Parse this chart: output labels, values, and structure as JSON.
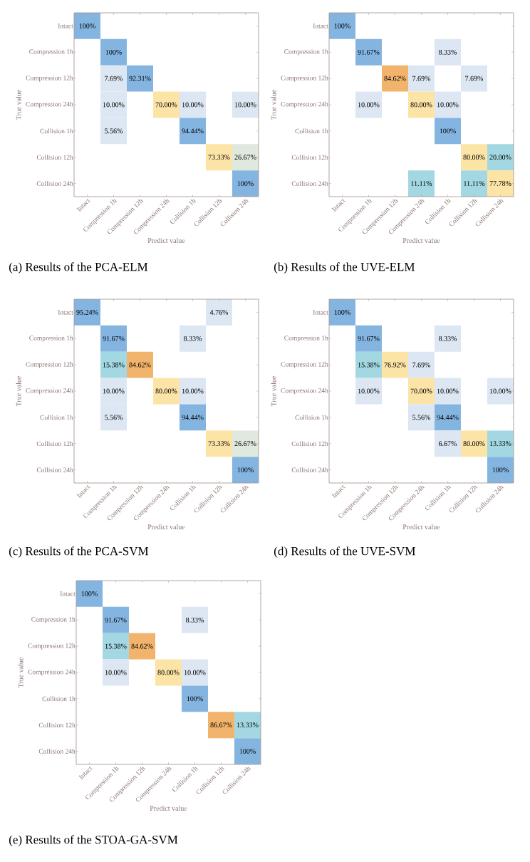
{
  "chart_data": [
    {
      "type": "heatmap",
      "title": "(a) Results of the PCA-ELM",
      "xlabel": "Predict value",
      "ylabel": "True value",
      "categories": [
        "Intact",
        "Compression 1h",
        "Compression 12h",
        "Compression 24h",
        "Collision 1h",
        "Collision 12h",
        "Collision 24h"
      ],
      "y_categories": [
        "Intact",
        "Compression 1h",
        "Compression 12h",
        "Compression 24h",
        "Collision 1h",
        "Collision 12h",
        "Collision 24h"
      ],
      "cells": [
        [
          100,
          null,
          null,
          null,
          null,
          null,
          null
        ],
        [
          null,
          100,
          null,
          null,
          null,
          null,
          null
        ],
        [
          null,
          7.69,
          92.31,
          null,
          null,
          null,
          null
        ],
        [
          null,
          10,
          null,
          70,
          10,
          null,
          10
        ],
        [
          null,
          5.56,
          null,
          null,
          94.44,
          null,
          null
        ],
        [
          null,
          null,
          null,
          null,
          null,
          73.33,
          26.67
        ],
        [
          null,
          null,
          null,
          null,
          null,
          null,
          100
        ]
      ],
      "cell_labels": [
        [
          "100%",
          null,
          null,
          null,
          null,
          null,
          null
        ],
        [
          null,
          "100%",
          null,
          null,
          null,
          null,
          null
        ],
        [
          null,
          "7.69%",
          "92.31%",
          null,
          null,
          null,
          null
        ],
        [
          null,
          "10.00%",
          null,
          "70.00%",
          "10.00%",
          null,
          "10.00%"
        ],
        [
          null,
          "5.56%",
          null,
          null,
          "94.44%",
          null,
          null
        ],
        [
          null,
          null,
          null,
          null,
          null,
          "73.33%",
          "26.67%"
        ],
        [
          null,
          null,
          null,
          null,
          null,
          null,
          "100%"
        ]
      ]
    },
    {
      "type": "heatmap",
      "title": "(b) Results of the UVE-ELM",
      "xlabel": "Predict value",
      "ylabel": "True value",
      "categories": [
        "Intact",
        "Compression 1h",
        "Compression 12h",
        "Compression 24h",
        "Collision 1h",
        "Collision 12h",
        "Collision 24h"
      ],
      "y_categories": [
        "Intact",
        "Compression 1h",
        "Compression 12h",
        "Compression 24h",
        "Collision 1h",
        "Collision 12h",
        "Collision 24h"
      ],
      "cells": [
        [
          100,
          null,
          null,
          null,
          null,
          null,
          null
        ],
        [
          null,
          91.67,
          null,
          null,
          8.33,
          null,
          null
        ],
        [
          null,
          null,
          84.62,
          7.69,
          null,
          7.69,
          null
        ],
        [
          null,
          10,
          null,
          80,
          10,
          null,
          null
        ],
        [
          null,
          null,
          null,
          null,
          100,
          null,
          null
        ],
        [
          null,
          null,
          null,
          null,
          null,
          80,
          20
        ],
        [
          null,
          null,
          null,
          11.11,
          null,
          11.11,
          77.78
        ]
      ],
      "cell_labels": [
        [
          "100%",
          null,
          null,
          null,
          null,
          null,
          null
        ],
        [
          null,
          "91.67%",
          null,
          null,
          "8.33%",
          null,
          null
        ],
        [
          null,
          null,
          "84.62%",
          "7.69%",
          null,
          "7.69%",
          null
        ],
        [
          null,
          "10.00%",
          null,
          "80.00%",
          "10.00%",
          null,
          null
        ],
        [
          null,
          null,
          null,
          null,
          "100%",
          null,
          null
        ],
        [
          null,
          null,
          null,
          null,
          null,
          "80.00%",
          "20.00%"
        ],
        [
          null,
          null,
          null,
          "11.11%",
          null,
          "11.11%",
          "77.78%"
        ]
      ]
    },
    {
      "type": "heatmap",
      "title": "(c) Results of the PCA-SVM",
      "xlabel": "Predict value",
      "ylabel": "True value",
      "categories": [
        "Intact",
        "Compression 1h",
        "Compression 12h",
        "Compression 24h",
        "Collision 1h",
        "Collision 12h",
        "Collision 24h"
      ],
      "y_categories": [
        "Intact",
        "Compression 1h",
        "Compression 12h",
        "Compression 24h",
        "Collision 1h",
        "Collision 12h",
        "Collision 24h"
      ],
      "cells": [
        [
          95.24,
          null,
          null,
          null,
          null,
          4.76,
          null
        ],
        [
          null,
          91.67,
          null,
          null,
          8.33,
          null,
          null
        ],
        [
          null,
          15.38,
          84.62,
          null,
          null,
          null,
          null
        ],
        [
          null,
          10,
          null,
          80,
          10,
          null,
          null
        ],
        [
          null,
          5.56,
          null,
          null,
          94.44,
          null,
          null
        ],
        [
          null,
          null,
          null,
          null,
          null,
          73.33,
          26.67
        ],
        [
          null,
          null,
          null,
          null,
          null,
          null,
          100
        ]
      ],
      "cell_labels": [
        [
          "95.24%",
          null,
          null,
          null,
          null,
          "4.76%",
          null
        ],
        [
          null,
          "91.67%",
          null,
          null,
          "8.33%",
          null,
          null
        ],
        [
          null,
          "15.38%",
          "84.62%",
          null,
          null,
          null,
          null
        ],
        [
          null,
          "10.00%",
          null,
          "80.00%",
          "10.00%",
          null,
          null
        ],
        [
          null,
          "5.56%",
          null,
          null,
          "94.44%",
          null,
          null
        ],
        [
          null,
          null,
          null,
          null,
          null,
          "73.33%",
          "26.67%"
        ],
        [
          null,
          null,
          null,
          null,
          null,
          null,
          "100%"
        ]
      ]
    },
    {
      "type": "heatmap",
      "title": "(d) Results of the UVE-SVM",
      "xlabel": "Predict value",
      "ylabel": "True value",
      "categories": [
        "Intact",
        "Compression 1h",
        "Compression 12h",
        "Compression 24h",
        "Collision 1h",
        "Collision 12h",
        "Collision 24h"
      ],
      "y_categories": [
        "Intact",
        "Compression 1h",
        "Compression 12h",
        "Compression 24h",
        "Collision 1h",
        "Collision 12h",
        "Collision 24h"
      ],
      "cells": [
        [
          100,
          null,
          null,
          null,
          null,
          null,
          null
        ],
        [
          null,
          91.67,
          null,
          null,
          8.33,
          null,
          null
        ],
        [
          null,
          15.38,
          76.92,
          7.69,
          null,
          null,
          null
        ],
        [
          null,
          10,
          null,
          70,
          10,
          null,
          10
        ],
        [
          null,
          null,
          null,
          5.56,
          94.44,
          null,
          null
        ],
        [
          null,
          null,
          null,
          null,
          6.67,
          80,
          13.33
        ],
        [
          null,
          null,
          null,
          null,
          null,
          null,
          100
        ]
      ],
      "cell_labels": [
        [
          "100%",
          null,
          null,
          null,
          null,
          null,
          null
        ],
        [
          null,
          "91.67%",
          null,
          null,
          "8.33%",
          null,
          null
        ],
        [
          null,
          "15.38%",
          "76.92%",
          "7.69%",
          null,
          null,
          null
        ],
        [
          null,
          "10.00%",
          null,
          "70.00%",
          "10.00%",
          null,
          "10.00%"
        ],
        [
          null,
          null,
          null,
          "5.56%",
          "94.44%",
          null,
          null
        ],
        [
          null,
          null,
          null,
          null,
          "6.67%",
          "80.00%",
          "13.33%"
        ],
        [
          null,
          null,
          null,
          null,
          null,
          null,
          "100%"
        ]
      ]
    },
    {
      "type": "heatmap",
      "title": "(e) Results of the STOA-GA-SVM",
      "xlabel": "Predict value",
      "ylabel": "True value",
      "categories": [
        "Intact",
        "Compression 1h",
        "Compression 12h",
        "Compression 24h",
        "Collision 1h",
        "Collision 12h",
        "Collision 24h"
      ],
      "y_categories": [
        "Intact",
        "Compression 1h",
        "Compression 12h",
        "Compression 24h",
        "Collision 1h",
        "Collision 12h",
        "Collision 24h"
      ],
      "cells": [
        [
          100,
          null,
          null,
          null,
          null,
          null,
          null
        ],
        [
          null,
          91.67,
          null,
          null,
          8.33,
          null,
          null
        ],
        [
          null,
          15.38,
          84.62,
          null,
          null,
          null,
          null
        ],
        [
          null,
          10,
          null,
          80,
          10,
          null,
          null
        ],
        [
          null,
          null,
          null,
          null,
          100,
          null,
          null
        ],
        [
          null,
          null,
          null,
          null,
          null,
          86.67,
          13.33
        ],
        [
          null,
          null,
          null,
          null,
          null,
          null,
          100
        ]
      ],
      "cell_labels": [
        [
          "100%",
          null,
          null,
          null,
          null,
          null,
          null
        ],
        [
          null,
          "91.67%",
          null,
          null,
          "8.33%",
          null,
          null
        ],
        [
          null,
          "15.38%",
          "84.62%",
          null,
          null,
          null,
          null
        ],
        [
          null,
          "10.00%",
          null,
          "80.00%",
          "10.00%",
          null,
          null
        ],
        [
          null,
          null,
          null,
          null,
          "100%",
          null,
          null
        ],
        [
          null,
          null,
          null,
          null,
          null,
          "86.67%",
          "13.33%"
        ],
        [
          null,
          null,
          null,
          null,
          null,
          null,
          "100%"
        ]
      ]
    }
  ]
}
